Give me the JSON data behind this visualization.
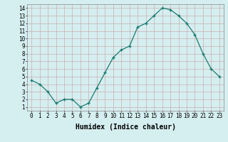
{
  "x": [
    0,
    1,
    2,
    3,
    4,
    5,
    6,
    7,
    8,
    9,
    10,
    11,
    12,
    13,
    14,
    15,
    16,
    17,
    18,
    19,
    20,
    21,
    22,
    23
  ],
  "y": [
    4.5,
    4.0,
    3.0,
    1.5,
    2.0,
    2.0,
    1.0,
    1.5,
    3.5,
    5.5,
    7.5,
    8.5,
    9.0,
    11.5,
    12.0,
    13.0,
    14.0,
    13.8,
    13.0,
    12.0,
    10.5,
    8.0,
    6.0,
    5.0
  ],
  "line_color": "#1a7a6e",
  "marker": "+",
  "marker_color": "#1a7a6e",
  "bg_color": "#d5eef0",
  "grid_color": "#c8dada",
  "xlabel": "Humidex (Indice chaleur)",
  "xlabel_fontsize": 7,
  "ylabel_ticks": [
    1,
    2,
    3,
    4,
    5,
    6,
    7,
    8,
    9,
    10,
    11,
    12,
    13,
    14
  ],
  "xlim": [
    -0.5,
    23.5
  ],
  "ylim": [
    0.5,
    14.5
  ],
  "tick_fontsize": 5.5,
  "axis_color": "#888888",
  "line_width": 0.9,
  "marker_size": 3.5
}
